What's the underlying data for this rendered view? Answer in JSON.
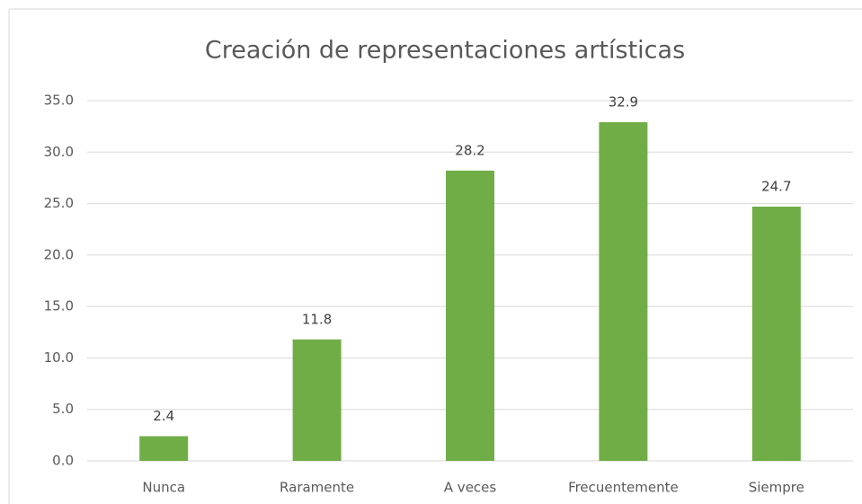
{
  "chart_data": {
    "type": "bar",
    "title": "Creación de representaciones artísticas",
    "categories": [
      "Nunca",
      "Raramente",
      "A veces",
      "Frecuentemente",
      "Siempre"
    ],
    "values": [
      2.4,
      11.8,
      28.2,
      32.9,
      24.7
    ],
    "color": "#70ad47",
    "ylim": [
      0,
      35
    ],
    "yticks": [
      {
        "value": 0,
        "label": "0.0"
      },
      {
        "value": 5,
        "label": "5.0"
      },
      {
        "value": 10,
        "label": "10.0"
      },
      {
        "value": 15,
        "label": "15.0"
      },
      {
        "value": 20,
        "label": "20.0"
      },
      {
        "value": 25,
        "label": "25.0"
      },
      {
        "value": 30,
        "label": "30.0"
      },
      {
        "value": 35,
        "label": "35.0"
      }
    ],
    "grid": true
  }
}
